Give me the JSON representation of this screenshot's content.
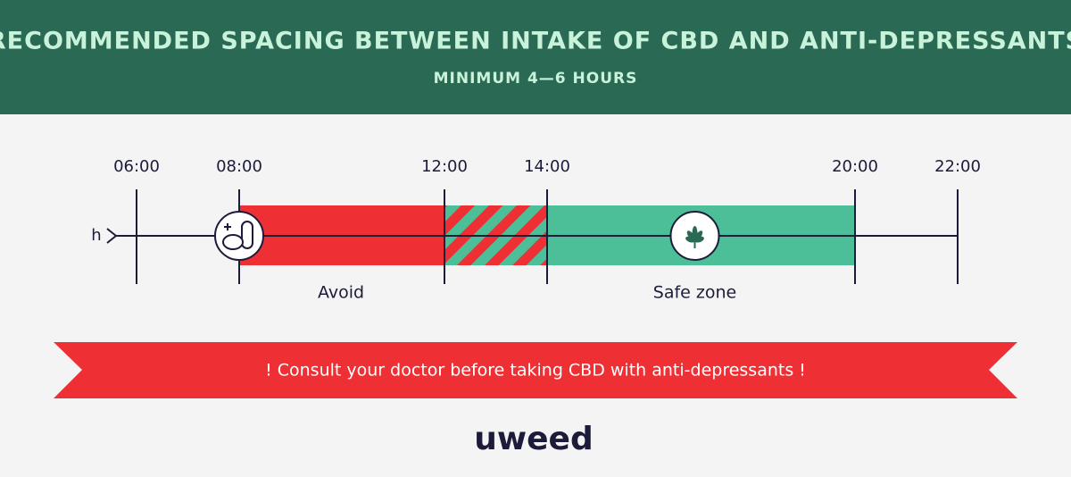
{
  "header": {
    "title": "RECOMMENDED SPACING BETWEEN INTAKE OF CBD AND ANTI-DEPRESSANTS",
    "subtitle": "MINIMUM 4—6 HOURS"
  },
  "timeline": {
    "axis_label": "h",
    "ticks": [
      "06:00",
      "08:00",
      "12:00",
      "14:00",
      "20:00",
      "22:00"
    ],
    "zones": [
      {
        "label": "Avoid"
      },
      {
        "label": "Safe zone"
      }
    ]
  },
  "banner": {
    "text": "! Consult your doctor before taking CBD with anti-depressants !"
  },
  "logo": {
    "text": "uweed"
  }
}
